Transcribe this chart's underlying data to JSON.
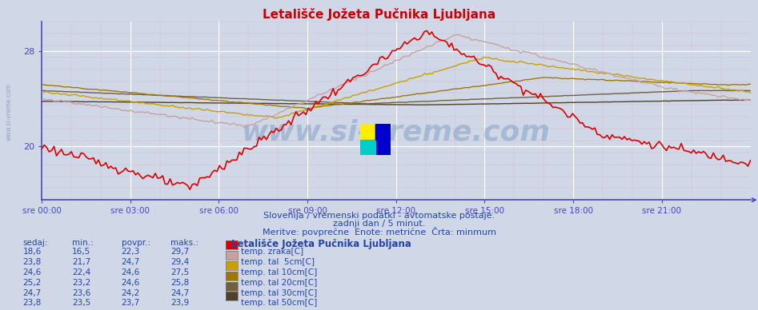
{
  "title": "Letališče Jožeta Pučnika Ljubljana",
  "subtitle1": "Slovenija / vremenski podatki - avtomatske postaje.",
  "subtitle2": "zadnji dan / 5 minut.",
  "subtitle3": "Meritve: povprečne  Enote: metrične  Črta: minmum",
  "bg_color": "#d0d8e8",
  "plot_bg_color": "#d0d8e8",
  "axis_color": "#4444cc",
  "title_color": "#cc0000",
  "text_color": "#2244aa",
  "series": {
    "temp_zrak": {
      "color": "#dd0000",
      "label": "temp. zraka[C]",
      "sedaj": "18,6",
      "min": "16,5",
      "povpr": "22,3",
      "maks": "29,7"
    },
    "temp_tal_5": {
      "color": "#c8a0a0",
      "label": "temp. tal  5cm[C]",
      "sedaj": "23,8",
      "min": "21,7",
      "povpr": "24,7",
      "maks": "29,4"
    },
    "temp_tal_10": {
      "color": "#c8a000",
      "label": "temp. tal 10cm[C]",
      "sedaj": "24,6",
      "min": "22,4",
      "povpr": "24,6",
      "maks": "27,5"
    },
    "temp_tal_20": {
      "color": "#a07800",
      "label": "temp. tal 20cm[C]",
      "sedaj": "25,2",
      "min": "23,2",
      "povpr": "24,6",
      "maks": "25,8"
    },
    "temp_tal_30": {
      "color": "#706040",
      "label": "temp. tal 30cm[C]",
      "sedaj": "24,7",
      "min": "23,6",
      "povpr": "24,2",
      "maks": "24,7"
    },
    "temp_tal_50": {
      "color": "#504028",
      "label": "temp. tal 50cm[C]",
      "sedaj": "23,8",
      "min": "23,5",
      "povpr": "23,7",
      "maks": "23,9"
    }
  },
  "xtick_labels": [
    "sre 00:00",
    "sre 03:00",
    "sre 06:00",
    "sre 09:00",
    "sre 12:00",
    "sre 15:00",
    "sre 18:00",
    "sre 21:00"
  ],
  "table_headers": [
    "sedaj:",
    "min.:",
    "povpr.:",
    "maks.:"
  ],
  "station_label": "Letališče Jožeta Pučnika Ljubljana",
  "watermark": "www.si-vreme.com",
  "ylim": [
    15.5,
    30.5
  ],
  "yticks": [
    20,
    28
  ]
}
